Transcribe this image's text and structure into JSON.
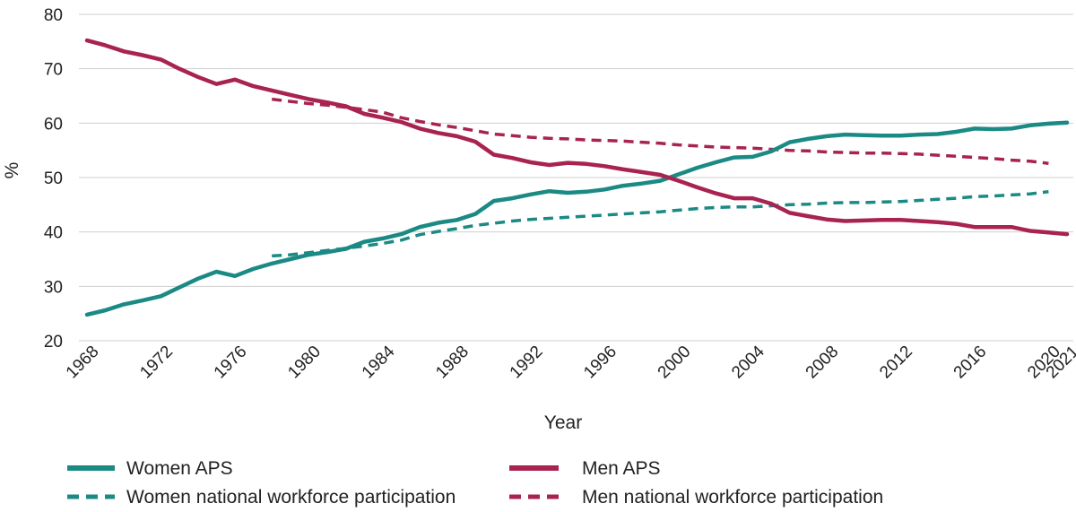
{
  "chart_data": {
    "type": "line",
    "title": "",
    "xlabel": "Year",
    "ylabel": "%",
    "ylim": [
      20,
      80
    ],
    "xlim": [
      1968,
      2021
    ],
    "yticks": [
      20,
      30,
      40,
      50,
      60,
      70,
      80
    ],
    "xticks": [
      1968,
      1972,
      1976,
      1980,
      1984,
      1988,
      1992,
      1996,
      2000,
      2004,
      2008,
      2012,
      2016,
      2020,
      2021
    ],
    "grid": true,
    "legend_position": "bottom",
    "series": [
      {
        "name": "Women APS",
        "color": "#1b8a84",
        "style": "solid",
        "x": [
          1968,
          1969,
          1970,
          1971,
          1972,
          1973,
          1974,
          1975,
          1976,
          1977,
          1978,
          1979,
          1980,
          1981,
          1982,
          1983,
          1984,
          1985,
          1986,
          1987,
          1988,
          1989,
          1990,
          1991,
          1992,
          1993,
          1994,
          1995,
          1996,
          1997,
          1998,
          1999,
          2000,
          2001,
          2002,
          2003,
          2004,
          2005,
          2006,
          2007,
          2008,
          2009,
          2010,
          2011,
          2012,
          2013,
          2014,
          2015,
          2016,
          2017,
          2018,
          2019,
          2020,
          2021
        ],
        "values": [
          24.8,
          25.6,
          26.7,
          27.4,
          28.2,
          29.8,
          31.4,
          32.7,
          31.9,
          33.2,
          34.2,
          35.0,
          35.8,
          36.3,
          36.9,
          38.2,
          38.8,
          39.6,
          40.9,
          41.7,
          42.2,
          43.3,
          45.7,
          46.2,
          46.9,
          47.5,
          47.2,
          47.4,
          47.8,
          48.5,
          48.9,
          49.4,
          50.6,
          51.8,
          52.8,
          53.7,
          53.8,
          54.8,
          56.5,
          57.1,
          57.6,
          57.9,
          57.8,
          57.7,
          57.7,
          57.9,
          58.0,
          58.4,
          59.0,
          58.9,
          59.0,
          59.6,
          59.9,
          60.1
        ]
      },
      {
        "name": "Men APS",
        "color": "#a8234f",
        "style": "solid",
        "x": [
          1968,
          1969,
          1970,
          1971,
          1972,
          1973,
          1974,
          1975,
          1976,
          1977,
          1978,
          1979,
          1980,
          1981,
          1982,
          1983,
          1984,
          1985,
          1986,
          1987,
          1988,
          1989,
          1990,
          1991,
          1992,
          1993,
          1994,
          1995,
          1996,
          1997,
          1998,
          1999,
          2000,
          2001,
          2002,
          2003,
          2004,
          2005,
          2006,
          2007,
          2008,
          2009,
          2010,
          2011,
          2012,
          2013,
          2014,
          2015,
          2016,
          2017,
          2018,
          2019,
          2020,
          2021
        ],
        "values": [
          75.2,
          74.3,
          73.2,
          72.5,
          71.7,
          70.0,
          68.5,
          67.2,
          68.0,
          66.8,
          66.0,
          65.2,
          64.4,
          63.8,
          63.1,
          61.7,
          61.0,
          60.2,
          59.0,
          58.2,
          57.6,
          56.6,
          54.2,
          53.6,
          52.8,
          52.3,
          52.7,
          52.5,
          52.1,
          51.5,
          51.0,
          50.5,
          49.4,
          48.2,
          47.1,
          46.2,
          46.2,
          45.2,
          43.5,
          42.9,
          42.3,
          42.0,
          42.1,
          42.2,
          42.2,
          42.0,
          41.8,
          41.5,
          40.9,
          40.9,
          40.9,
          40.2,
          39.9,
          39.6
        ]
      },
      {
        "name": "Women national workforce participation",
        "color": "#1b8a84",
        "style": "dashed",
        "x": [
          1978,
          1979,
          1980,
          1981,
          1982,
          1983,
          1984,
          1985,
          1986,
          1987,
          1988,
          1989,
          1990,
          1991,
          1992,
          1993,
          1994,
          1995,
          1996,
          1997,
          1998,
          1999,
          2000,
          2001,
          2002,
          2003,
          2004,
          2005,
          2006,
          2007,
          2008,
          2009,
          2010,
          2011,
          2012,
          2013,
          2014,
          2015,
          2016,
          2017,
          2018,
          2019,
          2020
        ],
        "values": [
          35.6,
          35.8,
          36.2,
          36.6,
          37.0,
          37.4,
          37.9,
          38.5,
          39.5,
          40.1,
          40.6,
          41.2,
          41.6,
          42.0,
          42.3,
          42.5,
          42.7,
          42.9,
          43.1,
          43.3,
          43.5,
          43.7,
          44.0,
          44.3,
          44.5,
          44.6,
          44.6,
          44.8,
          45.0,
          45.1,
          45.3,
          45.4,
          45.4,
          45.5,
          45.6,
          45.8,
          46.0,
          46.2,
          46.5,
          46.6,
          46.8,
          47.0,
          47.4
        ]
      },
      {
        "name": "Men national workforce participation",
        "color": "#a8234f",
        "style": "dashed",
        "x": [
          1978,
          1979,
          1980,
          1981,
          1982,
          1983,
          1984,
          1985,
          1986,
          1987,
          1988,
          1989,
          1990,
          1991,
          1992,
          1993,
          1994,
          1995,
          1996,
          1997,
          1998,
          1999,
          2000,
          2001,
          2002,
          2003,
          2004,
          2005,
          2006,
          2007,
          2008,
          2009,
          2010,
          2011,
          2012,
          2013,
          2014,
          2015,
          2016,
          2017,
          2018,
          2019,
          2020
        ],
        "values": [
          64.4,
          64.0,
          63.6,
          63.3,
          62.9,
          62.5,
          62.0,
          61.0,
          60.3,
          59.7,
          59.2,
          58.6,
          58.0,
          57.7,
          57.4,
          57.2,
          57.1,
          56.9,
          56.8,
          56.7,
          56.5,
          56.3,
          56.0,
          55.8,
          55.6,
          55.5,
          55.4,
          55.2,
          55.0,
          54.9,
          54.7,
          54.6,
          54.5,
          54.5,
          54.4,
          54.3,
          54.1,
          53.9,
          53.7,
          53.5,
          53.2,
          53.0,
          52.6
        ]
      }
    ]
  }
}
